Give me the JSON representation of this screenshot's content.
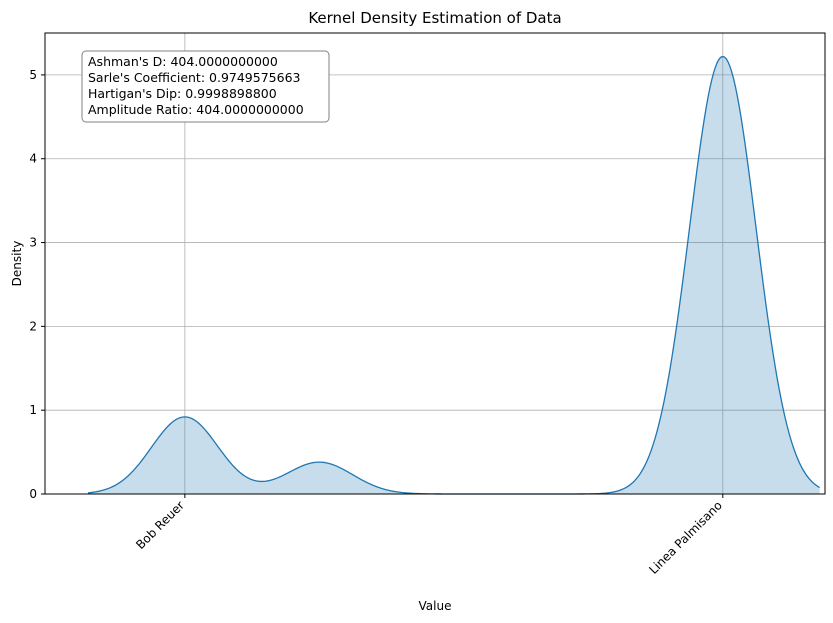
{
  "chart_data": {
    "type": "area",
    "title": "Kernel Density Estimation of Data",
    "xlabel": "Value",
    "ylabel": "Density",
    "ylim": [
      0,
      5.5
    ],
    "yticks": [
      0,
      1,
      2,
      3,
      4,
      5
    ],
    "xlim": [
      -0.26,
      1.19
    ],
    "xticks": [
      {
        "position": 0,
        "label": "Bob Reuer"
      },
      {
        "position": 1,
        "label": "Linea Palmisano"
      }
    ],
    "x_tick_rotation_deg": 45,
    "grid": true,
    "series": [
      {
        "color": "#1f77b4",
        "fill_alpha": 0.25,
        "x_range": [
          -0.18,
          1.18
        ],
        "components": [
          {
            "center": 0.0,
            "peak": 0.92,
            "sd": 0.062
          },
          {
            "center": 0.25,
            "peak": 0.38,
            "sd": 0.062
          },
          {
            "center": 1.0,
            "peak": 5.22,
            "sd": 0.062
          }
        ]
      }
    ],
    "annotation": {
      "placement": "top-left",
      "lines": [
        "Ashman's D: 404.0000000000",
        "Sarle's Coefficient: 0.9749575663",
        "Hartigan's Dip: 0.9998898800",
        "Amplitude Ratio: 404.0000000000"
      ]
    }
  }
}
